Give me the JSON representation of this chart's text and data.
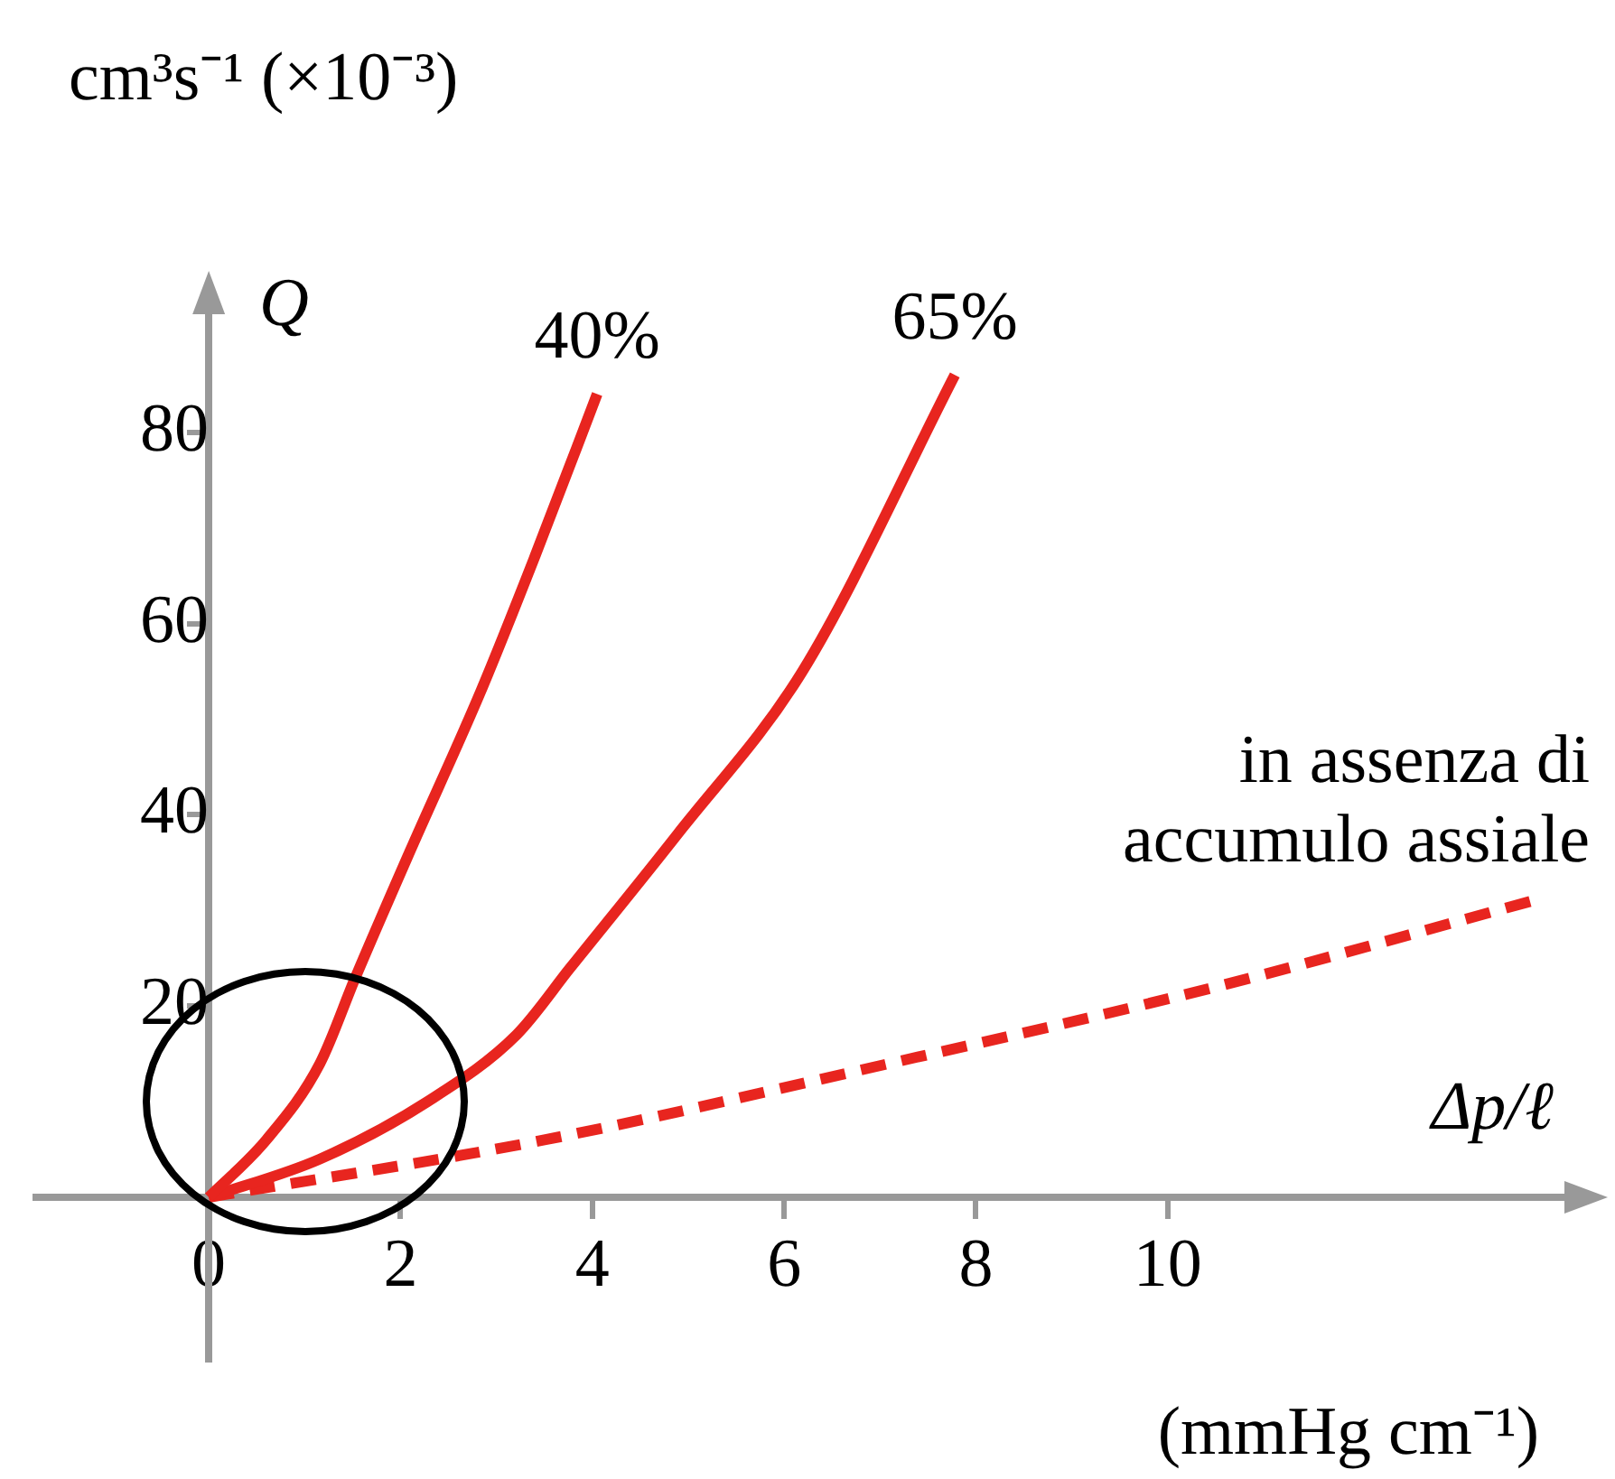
{
  "chart_data": {
    "type": "line",
    "title": "cm³s⁻¹ (×10⁻³)",
    "ylabel": "Q",
    "xlabel": "Δp/ℓ",
    "annotations": [
      "(mmHg cm⁻¹)"
    ],
    "xlim": [
      -1.8,
      14.4
    ],
    "ylim": [
      -17,
      95
    ],
    "xticks": [
      0,
      2,
      4,
      6,
      8,
      10
    ],
    "yticks": [
      20,
      40,
      60,
      80
    ],
    "grid": false,
    "legend": false,
    "marker": "none",
    "series": [
      {
        "name": "40%",
        "color": "#e8251f",
        "line_style": "solid",
        "x": [
          0,
          0.6,
          1.16,
          1.53,
          2.09,
          2.84,
          3.4,
          4.05
        ],
        "values": [
          0,
          6,
          14,
          23,
          36,
          53,
          67,
          84
        ]
      },
      {
        "name": "65%",
        "color": "#e8251f",
        "line_style": "solid",
        "x": [
          0,
          1.16,
          2.28,
          3.21,
          3.77,
          4.89,
          6.19,
          7.78
        ],
        "values": [
          0,
          4,
          10,
          17,
          24,
          38,
          55,
          86
        ]
      },
      {
        "name": "in assenza di accumulo assiale",
        "color": "#e8251f",
        "line_style": "dashed",
        "x": [
          0,
          3.5,
          7.1,
          10.5,
          13.8
        ],
        "values": [
          0,
          6,
          14,
          22,
          31
        ]
      }
    ]
  }
}
